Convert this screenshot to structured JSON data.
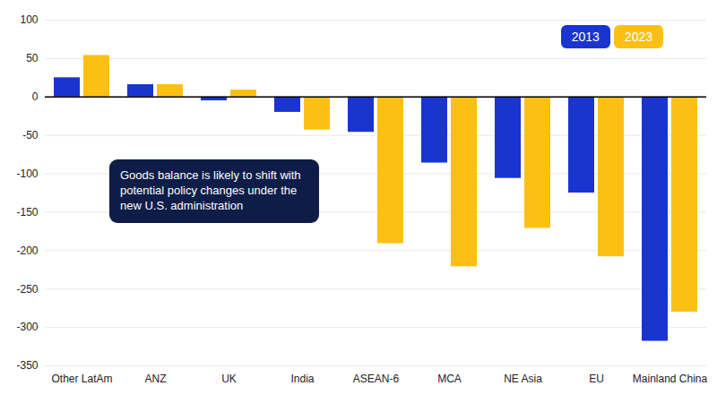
{
  "chart_data": {
    "type": "bar",
    "categories": [
      "Other LatAm",
      "ANZ",
      "UK",
      "India",
      "ASEAN-6",
      "MCA",
      "NE Asia",
      "EU",
      "Mainland China"
    ],
    "series": [
      {
        "name": "2013",
        "color": "#1a34cf",
        "values": [
          25,
          16,
          -5,
          -20,
          -46,
          -86,
          -106,
          -125,
          -318
        ]
      },
      {
        "name": "2023",
        "color": "#fcc015",
        "values": [
          54,
          16,
          9,
          -43,
          -191,
          -221,
          -171,
          -208,
          -280
        ]
      }
    ],
    "ylim": [
      -350,
      100
    ],
    "yticks": [
      -350,
      -300,
      -250,
      -200,
      -150,
      -100,
      -50,
      0,
      50,
      100
    ],
    "grid": true,
    "legend": "top-right",
    "annotation": "Goods balance is likely to shift with potential policy changes under the new U.S. administration"
  }
}
